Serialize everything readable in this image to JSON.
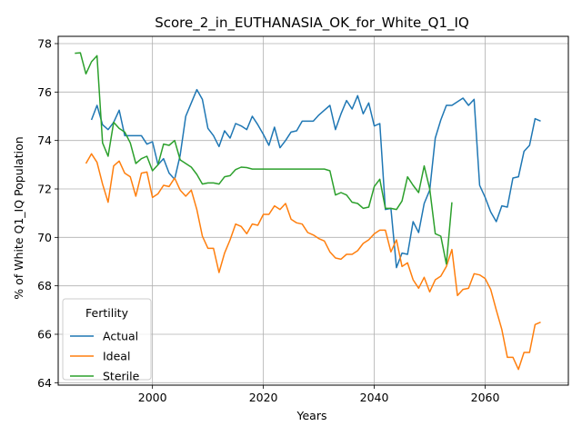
{
  "chart_data": {
    "type": "line",
    "title": "Score_2_in_EUTHANASIA_OK_for_White_Q1_IQ",
    "xlabel": "Years",
    "ylabel": "% of White Q1_IQ Population",
    "xlim": [
      1983,
      2075
    ],
    "ylim": [
      63.9,
      78.3
    ],
    "xticks": [
      2000,
      2020,
      2040,
      2060
    ],
    "yticks": [
      64,
      66,
      68,
      70,
      72,
      74,
      76,
      78
    ],
    "grid": true,
    "legend": {
      "title": "Fertility",
      "position": "lower-left"
    },
    "series": [
      {
        "name": "Actual",
        "color": "#1f77b4",
        "x": [
          1989,
          1990,
          1991,
          1992,
          1993,
          1994,
          1995,
          1996,
          1997,
          1998,
          1999,
          2000,
          2001,
          2002,
          2003,
          2004,
          2005,
          2006,
          2007,
          2008,
          2009,
          2010,
          2011,
          2012,
          2013,
          2014,
          2015,
          2016,
          2017,
          2018,
          2019,
          2020,
          2021,
          2022,
          2023,
          2024,
          2025,
          2026,
          2027,
          2028,
          2029,
          2030,
          2031,
          2032,
          2033,
          2034,
          2035,
          2036,
          2037,
          2038,
          2039,
          2040,
          2041,
          2042,
          2043,
          2044,
          2045,
          2046,
          2047,
          2048,
          2049,
          2050,
          2051,
          2052,
          2053,
          2054,
          2055,
          2056,
          2057,
          2058,
          2059,
          2060,
          2061,
          2062,
          2063,
          2064,
          2065,
          2066,
          2067,
          2068,
          2069,
          2070
        ],
        "values": [
          74.85,
          75.45,
          74.65,
          74.45,
          74.75,
          75.25,
          74.2,
          74.2,
          74.2,
          74.2,
          73.85,
          73.95,
          73.0,
          73.25,
          72.65,
          72.4,
          73.4,
          75.0,
          75.55,
          76.1,
          75.7,
          74.5,
          74.2,
          73.75,
          74.4,
          74.1,
          74.7,
          74.6,
          74.45,
          75.0,
          74.65,
          74.25,
          73.8,
          74.55,
          73.7,
          74.0,
          74.35,
          74.4,
          74.8,
          74.8,
          74.8,
          75.05,
          75.25,
          75.45,
          74.45,
          75.1,
          75.65,
          75.3,
          75.85,
          75.1,
          75.55,
          74.6,
          74.7,
          71.15,
          71.2,
          68.75,
          69.35,
          69.3,
          70.65,
          70.2,
          71.4,
          71.95,
          74.1,
          74.85,
          75.45,
          75.45,
          75.6,
          75.75,
          75.45,
          75.7,
          72.15,
          71.65,
          71.05,
          70.65,
          71.3,
          71.25,
          72.45,
          72.5,
          73.55,
          73.8,
          74.9,
          74.8
        ]
      },
      {
        "name": "Ideal",
        "color": "#ff7f0e",
        "x": [
          1988,
          1989,
          1990,
          1991,
          1992,
          1993,
          1994,
          1995,
          1996,
          1997,
          1998,
          1999,
          2000,
          2001,
          2002,
          2003,
          2004,
          2005,
          2006,
          2007,
          2008,
          2009,
          2010,
          2011,
          2012,
          2013,
          2014,
          2015,
          2016,
          2017,
          2018,
          2019,
          2020,
          2021,
          2022,
          2023,
          2024,
          2025,
          2026,
          2027,
          2028,
          2029,
          2030,
          2031,
          2032,
          2033,
          2034,
          2035,
          2036,
          2037,
          2038,
          2039,
          2040,
          2041,
          2042,
          2043,
          2044,
          2045,
          2046,
          2047,
          2048,
          2049,
          2050,
          2051,
          2052,
          2053,
          2054,
          2055,
          2056,
          2057,
          2058,
          2059,
          2060,
          2061,
          2062,
          2063,
          2064,
          2065,
          2066,
          2067,
          2068,
          2069,
          2070
        ],
        "values": [
          73.05,
          73.45,
          73.1,
          72.2,
          71.45,
          72.95,
          73.15,
          72.65,
          72.5,
          71.7,
          72.65,
          72.7,
          71.65,
          71.8,
          72.15,
          72.1,
          72.45,
          71.95,
          71.7,
          71.95,
          71.15,
          70.05,
          69.55,
          69.55,
          68.55,
          69.35,
          69.9,
          70.55,
          70.45,
          70.15,
          70.55,
          70.5,
          70.95,
          70.95,
          71.3,
          71.15,
          71.4,
          70.75,
          70.6,
          70.55,
          70.2,
          70.1,
          69.95,
          69.85,
          69.4,
          69.15,
          69.1,
          69.3,
          69.3,
          69.45,
          69.75,
          69.9,
          70.15,
          70.3,
          70.3,
          69.4,
          69.9,
          68.8,
          68.95,
          68.25,
          67.9,
          68.35,
          67.75,
          68.25,
          68.4,
          68.8,
          69.5,
          67.6,
          67.85,
          67.9,
          68.5,
          68.45,
          68.3,
          67.85,
          67.0,
          66.2,
          65.05,
          65.05,
          64.55,
          65.25,
          65.25,
          66.4,
          66.5
        ]
      },
      {
        "name": "Sterile",
        "color": "#2ca02c",
        "x": [
          1986,
          1987,
          1988,
          1989,
          1990,
          1991,
          1992,
          1993,
          1994,
          1995,
          1996,
          1997,
          1998,
          1999,
          2000,
          2001,
          2002,
          2003,
          2004,
          2005,
          2006,
          2007,
          2008,
          2009,
          2010,
          2011,
          2012,
          2013,
          2014,
          2015,
          2016,
          2017,
          2018,
          2019,
          2020,
          2021,
          2022,
          2023,
          2024,
          2025,
          2026,
          2027,
          2028,
          2029,
          2030,
          2031,
          2032,
          2033,
          2034,
          2035,
          2036,
          2037,
          2038,
          2039,
          2040,
          2041,
          2042,
          2043,
          2044,
          2045,
          2046,
          2047,
          2048,
          2049,
          2050,
          2051,
          2052,
          2053,
          2054
        ],
        "values": [
          77.6,
          77.62,
          76.75,
          77.25,
          77.5,
          73.9,
          73.35,
          74.75,
          74.5,
          74.35,
          73.9,
          73.05,
          73.25,
          73.35,
          72.75,
          73.0,
          73.85,
          73.8,
          74.0,
          73.2,
          73.05,
          72.9,
          72.6,
          72.2,
          72.25,
          72.25,
          72.2,
          72.5,
          72.55,
          72.8,
          72.9,
          72.88,
          72.82,
          72.82,
          72.82,
          72.82,
          72.82,
          72.82,
          72.82,
          72.82,
          72.82,
          72.82,
          72.82,
          72.82,
          72.82,
          72.82,
          72.75,
          71.75,
          71.85,
          71.75,
          71.45,
          71.4,
          71.2,
          71.25,
          72.1,
          72.4,
          71.2,
          71.2,
          71.15,
          71.5,
          72.5,
          72.15,
          71.85,
          72.95,
          72.0,
          70.15,
          70.05,
          68.9,
          71.45
        ]
      }
    ]
  }
}
